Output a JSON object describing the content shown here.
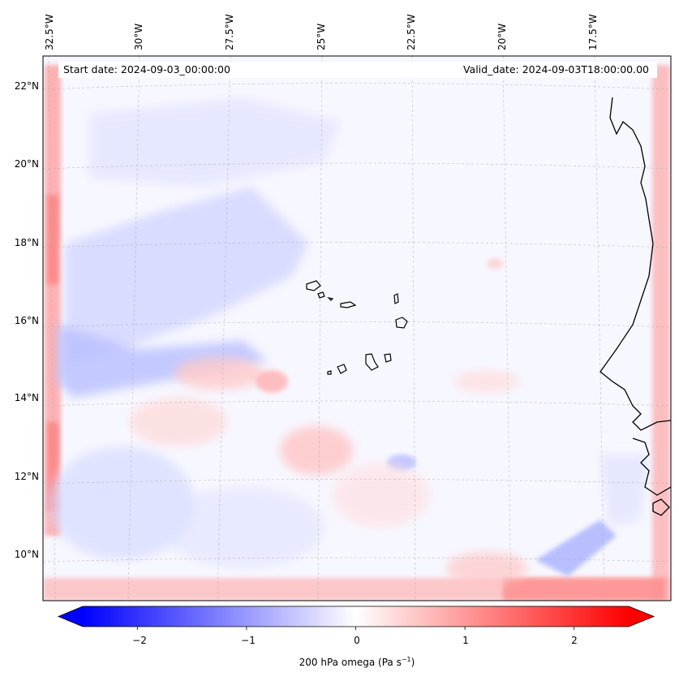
{
  "header": {
    "start_date": "Start date: 2024-09-03_00:00:00",
    "valid_date": "Valid_date: 2024-09-03T18:00:00.00"
  },
  "latitude_labels": [
    "22°N",
    "20°N",
    "18°N",
    "16°N",
    "14°N",
    "12°N",
    "10°N"
  ],
  "longitude_labels": [
    "32.5°W",
    "30°W",
    "27.5°W",
    "25°W",
    "22.5°W",
    "20°W",
    "17.5°W"
  ],
  "colorbar": {
    "ticks": [
      "−2",
      "−1",
      "0",
      "1",
      "2"
    ],
    "tick_values": [
      -2,
      -1,
      0,
      1,
      2
    ],
    "range": [
      -2.5,
      2.5
    ],
    "label": "200 hPa omega (Pa s",
    "label_exponent": "−1",
    "label_close": ")",
    "colors": {
      "min": "#0000ff",
      "mid": "#ffffff",
      "max": "#ff0000"
    }
  },
  "map": {
    "field": "200 hPa omega",
    "colormap": "bwr",
    "features": [
      "Cabo Verde islands",
      "West African coastline"
    ]
  }
}
